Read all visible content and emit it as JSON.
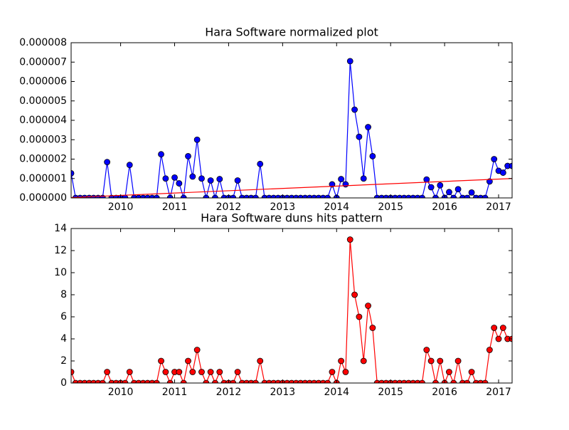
{
  "chart_data": [
    {
      "type": "line",
      "title": "Hara Software normalized plot",
      "x": [
        2009.0833,
        2009.1667,
        2009.25,
        2009.3333,
        2009.4167,
        2009.5,
        2009.5833,
        2009.6667,
        2009.75,
        2009.8333,
        2009.9167,
        2010,
        2010.0833,
        2010.1667,
        2010.25,
        2010.3333,
        2010.4167,
        2010.5,
        2010.5833,
        2010.6667,
        2010.75,
        2010.8333,
        2010.9167,
        2011,
        2011.0833,
        2011.1667,
        2011.25,
        2011.3333,
        2011.4167,
        2011.5,
        2011.5833,
        2011.6667,
        2011.75,
        2011.8333,
        2011.9167,
        2012,
        2012.0833,
        2012.1667,
        2012.25,
        2012.3333,
        2012.4167,
        2012.5,
        2012.5833,
        2012.6667,
        2012.75,
        2012.8333,
        2012.9167,
        2013,
        2013.0833,
        2013.1667,
        2013.25,
        2013.3333,
        2013.4167,
        2013.5,
        2013.5833,
        2013.6667,
        2013.75,
        2013.8333,
        2013.9167,
        2014,
        2014.0833,
        2014.1667,
        2014.25,
        2014.3333,
        2014.4167,
        2014.5,
        2014.5833,
        2014.6667,
        2014.75,
        2014.8333,
        2014.9167,
        2015,
        2015.0833,
        2015.1667,
        2015.25,
        2015.3333,
        2015.4167,
        2015.5,
        2015.5833,
        2015.6667,
        2015.75,
        2015.8333,
        2015.9167,
        2016,
        2016.0833,
        2016.1667,
        2016.25,
        2016.3333,
        2016.4167,
        2016.5,
        2016.5833,
        2016.6667,
        2016.75,
        2016.8333,
        2016.9167,
        2017,
        2017.0833,
        2017.1667,
        2017.25
      ],
      "series": [
        {
          "color": "#0000ff",
          "marker": "o",
          "values": [
            1.27e-06,
            0,
            0,
            0,
            0,
            0,
            0,
            0,
            1.85e-06,
            0,
            0,
            0,
            0,
            1.7e-06,
            0,
            0,
            0,
            0,
            0,
            0,
            2.25e-06,
            1e-06,
            0,
            1.05e-06,
            7.5e-07,
            0,
            2.15e-06,
            1.1e-06,
            3e-06,
            1e-06,
            0,
            9e-07,
            0,
            9.7e-07,
            0,
            0,
            0,
            9e-07,
            0,
            0,
            0,
            0,
            1.75e-06,
            0,
            0,
            0,
            0,
            0,
            0,
            0,
            0,
            0,
            0,
            0,
            0,
            0,
            0,
            0,
            7e-07,
            0,
            9.7e-07,
            7e-07,
            7.05e-06,
            4.55e-06,
            3.15e-06,
            1e-06,
            3.65e-06,
            2.15e-06,
            0,
            0,
            0,
            0,
            0,
            0,
            0,
            0,
            0,
            0,
            0,
            9.5e-07,
            5.5e-07,
            0,
            6.5e-07,
            0,
            3e-07,
            0,
            4.5e-07,
            0,
            0,
            2.8e-07,
            0,
            0,
            0,
            8.5e-07,
            2e-06,
            1.4e-06,
            1.3e-06,
            1.65e-06,
            1.65e-06
          ]
        },
        {
          "color": "#ff0000",
          "marker": "none",
          "x": [
            2009.0833,
            2017.25
          ],
          "values": [
            2e-08,
            1e-06
          ]
        }
      ],
      "xlim": [
        2009.0833,
        2017.25
      ],
      "xticks": [
        2010,
        2011,
        2012,
        2013,
        2014,
        2015,
        2016,
        2017
      ],
      "ylim": [
        0,
        8e-06
      ],
      "yticks": [
        {
          "value": 0,
          "label": "0.000000"
        },
        {
          "value": 1e-06,
          "label": "0.000001"
        },
        {
          "value": 2e-06,
          "label": "0.000002"
        },
        {
          "value": 3e-06,
          "label": "0.000003"
        },
        {
          "value": 4e-06,
          "label": "0.000004"
        },
        {
          "value": 5e-06,
          "label": "0.000005"
        },
        {
          "value": 6e-06,
          "label": "0.000006"
        },
        {
          "value": 7e-06,
          "label": "0.000007"
        },
        {
          "value": 8e-06,
          "label": "0.000008"
        }
      ]
    },
    {
      "type": "line",
      "title": "Hara Software duns hits pattern",
      "x": [
        2009.0833,
        2009.1667,
        2009.25,
        2009.3333,
        2009.4167,
        2009.5,
        2009.5833,
        2009.6667,
        2009.75,
        2009.8333,
        2009.9167,
        2010,
        2010.0833,
        2010.1667,
        2010.25,
        2010.3333,
        2010.4167,
        2010.5,
        2010.5833,
        2010.6667,
        2010.75,
        2010.8333,
        2010.9167,
        2011,
        2011.0833,
        2011.1667,
        2011.25,
        2011.3333,
        2011.4167,
        2011.5,
        2011.5833,
        2011.6667,
        2011.75,
        2011.8333,
        2011.9167,
        2012,
        2012.0833,
        2012.1667,
        2012.25,
        2012.3333,
        2012.4167,
        2012.5,
        2012.5833,
        2012.6667,
        2012.75,
        2012.8333,
        2012.9167,
        2013,
        2013.0833,
        2013.1667,
        2013.25,
        2013.3333,
        2013.4167,
        2013.5,
        2013.5833,
        2013.6667,
        2013.75,
        2013.8333,
        2013.9167,
        2014,
        2014.0833,
        2014.1667,
        2014.25,
        2014.3333,
        2014.4167,
        2014.5,
        2014.5833,
        2014.6667,
        2014.75,
        2014.8333,
        2014.9167,
        2015,
        2015.0833,
        2015.1667,
        2015.25,
        2015.3333,
        2015.4167,
        2015.5,
        2015.5833,
        2015.6667,
        2015.75,
        2015.8333,
        2015.9167,
        2016,
        2016.0833,
        2016.1667,
        2016.25,
        2016.3333,
        2016.4167,
        2016.5,
        2016.5833,
        2016.6667,
        2016.75,
        2016.8333,
        2016.9167,
        2017,
        2017.0833,
        2017.1667,
        2017.25
      ],
      "series": [
        {
          "color": "#ff0000",
          "marker": "o",
          "values": [
            1,
            0,
            0,
            0,
            0,
            0,
            0,
            0,
            1,
            0,
            0,
            0,
            0,
            1,
            0,
            0,
            0,
            0,
            0,
            0,
            2,
            1,
            0,
            1,
            1,
            0,
            2,
            1,
            3,
            1,
            0,
            1,
            0,
            1,
            0,
            0,
            0,
            1,
            0,
            0,
            0,
            0,
            2,
            0,
            0,
            0,
            0,
            0,
            0,
            0,
            0,
            0,
            0,
            0,
            0,
            0,
            0,
            0,
            1,
            0,
            2,
            1,
            13,
            8,
            6,
            2,
            7,
            5,
            0,
            0,
            0,
            0,
            0,
            0,
            0,
            0,
            0,
            0,
            0,
            3,
            2,
            0,
            2,
            0,
            1,
            0,
            2,
            0,
            0,
            1,
            0,
            0,
            0,
            3,
            5,
            4,
            5,
            4,
            4
          ]
        }
      ],
      "xlim": [
        2009.0833,
        2017.25
      ],
      "xticks": [
        2010,
        2011,
        2012,
        2013,
        2014,
        2015,
        2016,
        2017
      ],
      "ylim": [
        0,
        14
      ],
      "yticks": [
        0,
        2,
        4,
        6,
        8,
        10,
        12,
        14
      ]
    }
  ]
}
